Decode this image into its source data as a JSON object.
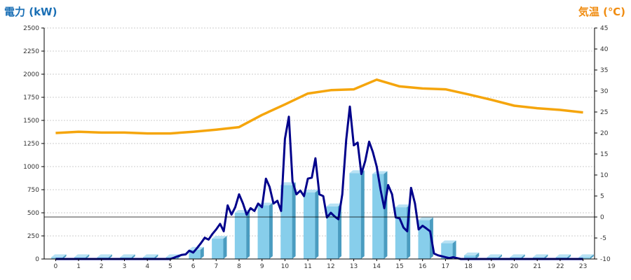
{
  "titles": {
    "left": "電力 (kW)",
    "right": "気温 (℃)"
  },
  "colors": {
    "power_title": "#1a6fb5",
    "temp_title": "#f08c10",
    "bar_front": "#87ceeb",
    "bar_side": "#4a9cc0",
    "bar_top": "#b8e2f4",
    "power_line": "#00008b",
    "temp_line": "#f5a50c",
    "grid": "#cccccc",
    "zero_line": "#000000"
  },
  "chart_data": {
    "type": "bar",
    "title": "",
    "xlabel": "",
    "ylabel": "電力 (kW)",
    "y2label": "気温 (℃)",
    "ylim": [
      0,
      2500
    ],
    "y2lim": [
      -10,
      45
    ],
    "grid": true,
    "categories": [
      "0",
      "1",
      "2",
      "3",
      "4",
      "5",
      "6",
      "7",
      "8",
      "9",
      "10",
      "11",
      "12",
      "13",
      "14",
      "15",
      "16",
      "17",
      "18",
      "19",
      "20",
      "21",
      "22",
      "23"
    ],
    "left_ticks": [
      "0",
      "250",
      "500",
      "750",
      "1000",
      "1250",
      "1500",
      "1750",
      "2000",
      "2250",
      "2500"
    ],
    "right_ticks": [
      "-10",
      "-5",
      "0",
      "5",
      "10",
      "15",
      "20",
      "25",
      "30",
      "35",
      "40",
      "45"
    ],
    "series": [
      {
        "kind": "bar",
        "axis": "left",
        "values": [
          20,
          20,
          20,
          20,
          20,
          20,
          100,
          220,
          500,
          580,
          800,
          720,
          570,
          930,
          920,
          560,
          420,
          170,
          40,
          20,
          20,
          20,
          20,
          20
        ]
      },
      {
        "kind": "line",
        "axis": "left",
        "x": [
          0,
          0.5,
          1,
          1.5,
          2,
          2.5,
          3,
          3.5,
          4,
          4.5,
          5,
          5.17,
          5.33,
          5.5,
          5.67,
          5.83,
          6,
          6.17,
          6.33,
          6.5,
          6.67,
          6.83,
          7,
          7.17,
          7.33,
          7.5,
          7.67,
          7.83,
          8,
          8.17,
          8.33,
          8.5,
          8.67,
          8.83,
          9,
          9.17,
          9.33,
          9.5,
          9.67,
          9.83,
          10,
          10.17,
          10.33,
          10.5,
          10.67,
          10.83,
          11,
          11.17,
          11.33,
          11.5,
          11.67,
          11.83,
          12,
          12.17,
          12.33,
          12.5,
          12.67,
          12.83,
          13,
          13.17,
          13.33,
          13.5,
          13.67,
          13.83,
          14,
          14.17,
          14.33,
          14.5,
          14.67,
          14.83,
          15,
          15.17,
          15.33,
          15.5,
          15.67,
          15.83,
          16,
          16.17,
          16.33,
          16.5,
          16.67,
          16.83,
          17,
          17.17,
          17.33,
          17.5,
          17.67,
          17.83,
          18,
          18.5,
          19,
          19.5,
          20,
          20.5,
          21,
          21.5,
          22,
          22.5,
          23
        ],
        "values": [
          0,
          0,
          0,
          0,
          0,
          0,
          0,
          0,
          0,
          0,
          0,
          15,
          30,
          45,
          50,
          90,
          70,
          120,
          170,
          230,
          210,
          270,
          320,
          380,
          300,
          580,
          480,
          560,
          700,
          600,
          480,
          550,
          520,
          600,
          560,
          870,
          780,
          600,
          630,
          520,
          1300,
          1540,
          840,
          700,
          740,
          680,
          870,
          880,
          1090,
          700,
          680,
          450,
          500,
          460,
          430,
          700,
          1290,
          1650,
          1230,
          1260,
          920,
          1060,
          1270,
          1160,
          1000,
          750,
          550,
          800,
          700,
          450,
          440,
          340,
          300,
          770,
          600,
          320,
          360,
          330,
          300,
          60,
          40,
          30,
          20,
          10,
          20,
          10,
          0,
          0,
          0,
          0,
          0,
          0,
          0,
          0,
          0,
          0,
          0,
          0,
          0
        ]
      },
      {
        "kind": "line",
        "axis": "right",
        "x": [
          0,
          1,
          2,
          3,
          4,
          5,
          6,
          7,
          8,
          9,
          10,
          11,
          12,
          13,
          14,
          15,
          16,
          17,
          18,
          19,
          20,
          21,
          22,
          23
        ],
        "values": [
          20,
          20.3,
          20.1,
          20.1,
          19.9,
          19.9,
          20.3,
          20.8,
          21.4,
          24.3,
          26.8,
          29.4,
          30.2,
          30.4,
          32.7,
          31.1,
          30.6,
          30.4,
          29.2,
          27.9,
          26.5,
          25.9,
          25.5,
          24.9
        ]
      }
    ]
  }
}
